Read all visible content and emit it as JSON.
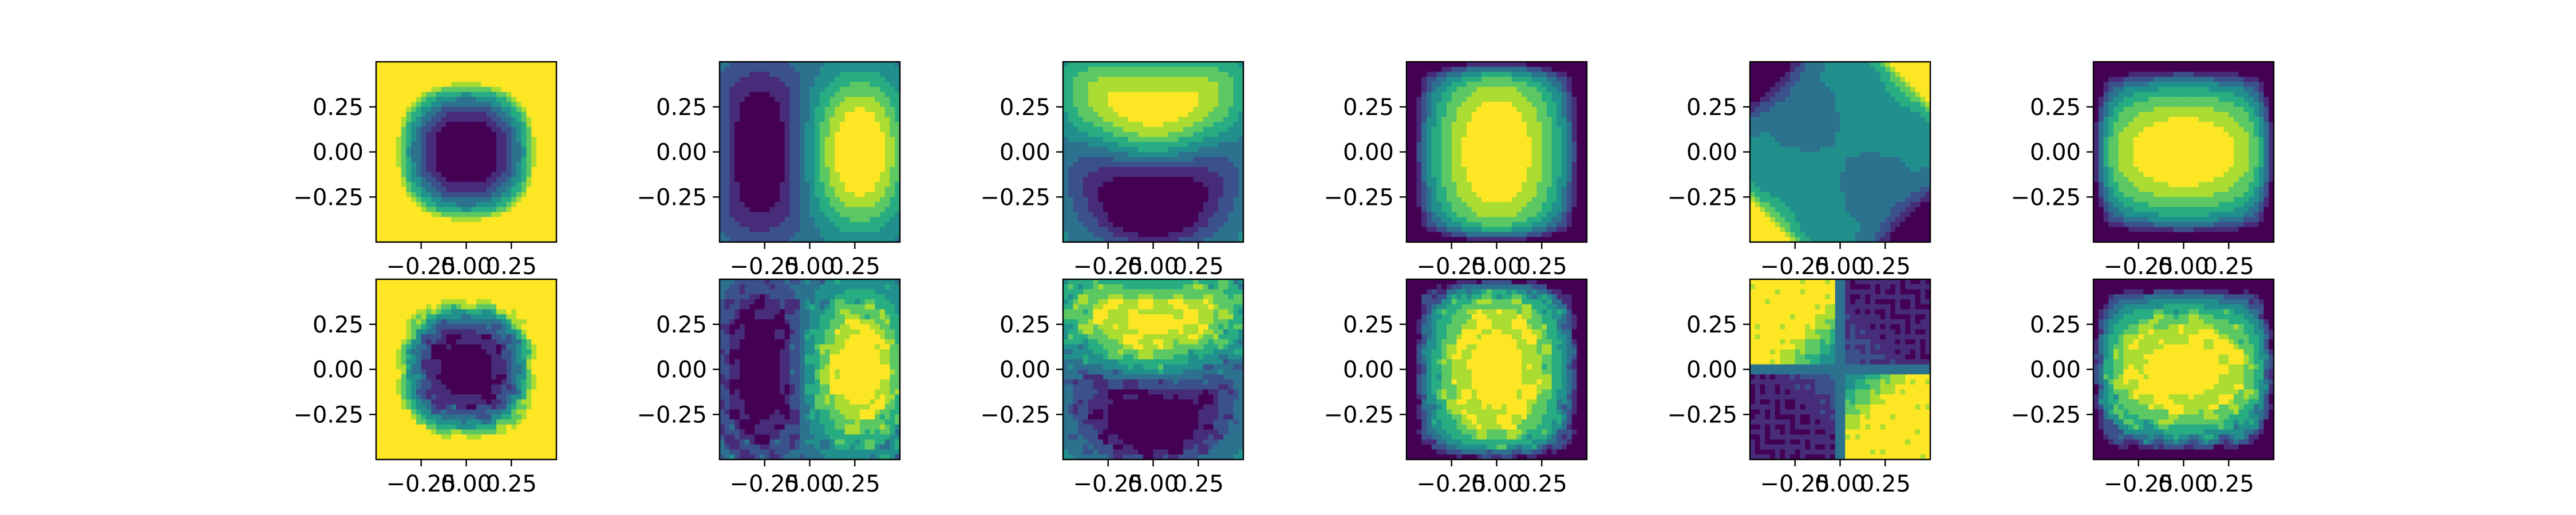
{
  "figure": {
    "background": "#ffffff"
  },
  "colormap": {
    "name": "viridis",
    "levels": [
      "#440154",
      "#472c7a",
      "#3b518b",
      "#2c718e",
      "#21908d",
      "#27ad81",
      "#5cc863",
      "#aadc32",
      "#fde725"
    ]
  },
  "chart_data": [
    {
      "type": "heatmap",
      "panel": "row1-col1",
      "xlim": [
        -0.5,
        0.5
      ],
      "ylim": [
        -0.5,
        0.5
      ],
      "xticks": [
        "−0.25",
        "0.00",
        "0.25"
      ],
      "yticks": [
        "0.25",
        "0.00",
        "−0.25"
      ],
      "pattern": "radial-low-center",
      "levels": 9,
      "grid": false
    },
    {
      "type": "heatmap",
      "panel": "row1-col2",
      "xlim": [
        -0.5,
        0.5
      ],
      "ylim": [
        -0.5,
        0.5
      ],
      "xticks": [
        "−0.25",
        "0.00",
        "0.25"
      ],
      "yticks": [
        "0.25",
        "0.00",
        "−0.25"
      ],
      "pattern": "dipole-x (low left, high right)",
      "levels": 9,
      "grid": false
    },
    {
      "type": "heatmap",
      "panel": "row1-col3",
      "xlim": [
        -0.5,
        0.5
      ],
      "ylim": [
        -0.5,
        0.5
      ],
      "xticks": [
        "−0.25",
        "0.00",
        "0.25"
      ],
      "yticks": [
        "0.25",
        "0.00",
        "−0.25"
      ],
      "pattern": "dipole-y (high top, low bottom)",
      "levels": 9,
      "grid": false
    },
    {
      "type": "heatmap",
      "panel": "row1-col4",
      "xlim": [
        -0.5,
        0.5
      ],
      "ylim": [
        -0.5,
        0.5
      ],
      "xticks": [
        "−0.25",
        "0.00",
        "0.25"
      ],
      "yticks": [
        "0.25",
        "0.00",
        "−0.25"
      ],
      "pattern": "vertical bump (high center column)",
      "levels": 9,
      "grid": false
    },
    {
      "type": "heatmap",
      "panel": "row1-col5",
      "xlim": [
        -0.5,
        0.5
      ],
      "ylim": [
        -0.5,
        0.5
      ],
      "xticks": [
        "−0.25",
        "0.00",
        "0.25"
      ],
      "yticks": [
        "0.25",
        "0.00",
        "−0.25"
      ],
      "pattern": "corner quadrupole (mostly mid level)",
      "levels": 9,
      "grid": false
    },
    {
      "type": "heatmap",
      "panel": "row1-col6",
      "xlim": [
        -0.5,
        0.5
      ],
      "ylim": [
        -0.5,
        0.5
      ],
      "xticks": [
        "−0.25",
        "0.00",
        "0.25"
      ],
      "yticks": [
        "0.25",
        "0.00",
        "−0.25"
      ],
      "pattern": "horizontal bump (high center row)",
      "levels": 9,
      "grid": false
    },
    {
      "type": "heatmap",
      "panel": "row2-col1",
      "xlim": [
        -0.5,
        0.5
      ],
      "ylim": [
        -0.5,
        0.5
      ],
      "xticks": [
        "−0.25",
        "0.00",
        "0.25"
      ],
      "yticks": [
        "0.25",
        "0.00",
        "−0.25"
      ],
      "pattern": "radial-low-center (noisy reconstruction)",
      "levels": 9,
      "grid": false
    },
    {
      "type": "heatmap",
      "panel": "row2-col2",
      "xlim": [
        -0.5,
        0.5
      ],
      "ylim": [
        -0.5,
        0.5
      ],
      "xticks": [
        "−0.25",
        "0.00",
        "0.25"
      ],
      "yticks": [
        "0.25",
        "0.00",
        "−0.25"
      ],
      "pattern": "dipole-x (noisy reconstruction)",
      "levels": 9,
      "grid": false
    },
    {
      "type": "heatmap",
      "panel": "row2-col3",
      "xlim": [
        -0.5,
        0.5
      ],
      "ylim": [
        -0.5,
        0.5
      ],
      "xticks": [
        "−0.25",
        "0.00",
        "0.25"
      ],
      "yticks": [
        "0.25",
        "0.00",
        "−0.25"
      ],
      "pattern": "dipole-y (noisy reconstruction)",
      "levels": 9,
      "grid": false
    },
    {
      "type": "heatmap",
      "panel": "row2-col4",
      "xlim": [
        -0.5,
        0.5
      ],
      "ylim": [
        -0.5,
        0.5
      ],
      "xticks": [
        "−0.25",
        "0.00",
        "0.25"
      ],
      "yticks": [
        "0.25",
        "0.00",
        "−0.25"
      ],
      "pattern": "vertical bump (noisy reconstruction)",
      "levels": 9,
      "grid": false
    },
    {
      "type": "heatmap",
      "panel": "row2-col5",
      "xlim": [
        -0.5,
        0.5
      ],
      "ylim": [
        -0.5,
        0.5
      ],
      "xticks": [
        "−0.25",
        "0.00",
        "0.25"
      ],
      "yticks": [
        "0.25",
        "0.00",
        "−0.25"
      ],
      "pattern": "diagonal quadrant pattern (high top-left/bottom-right)",
      "levels": 9,
      "grid": false
    },
    {
      "type": "heatmap",
      "panel": "row2-col6",
      "xlim": [
        -0.5,
        0.5
      ],
      "ylim": [
        -0.5,
        0.5
      ],
      "xticks": [
        "−0.25",
        "0.00",
        "0.25"
      ],
      "yticks": [
        "0.25",
        "0.00",
        "−0.25"
      ],
      "pattern": "horizontal bump (noisy reconstruction)",
      "levels": 9,
      "grid": false
    }
  ]
}
